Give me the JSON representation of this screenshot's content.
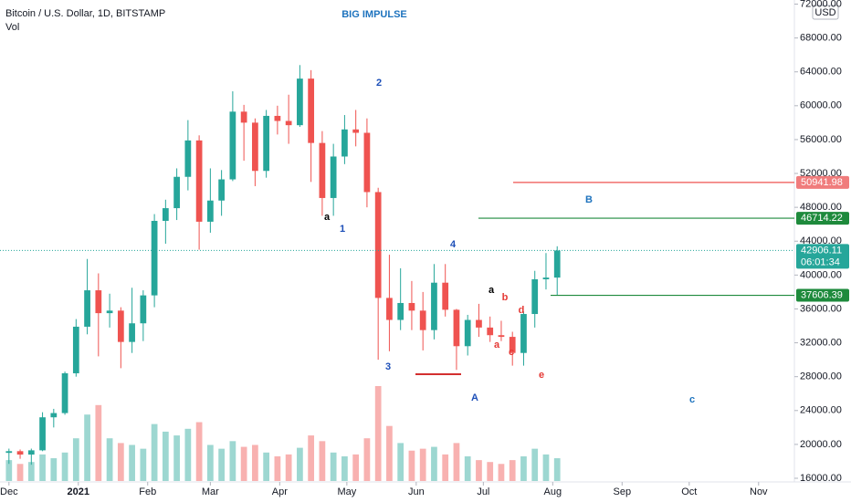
{
  "chart_data": {
    "type": "candlestick",
    "title": "BIG IMPULSE",
    "subtitle": "Bitcoin / U.S. Dollar, 1D, BITSTAMP",
    "volume_label": "Vol",
    "currency": "USD",
    "categories": [
      null,
      null,
      null,
      null,
      null,
      null,
      null,
      null,
      null,
      null,
      null,
      null,
      null,
      null,
      null,
      null,
      null,
      null,
      null,
      null,
      null,
      null,
      null,
      null,
      null,
      null,
      null,
      null,
      null,
      null,
      null,
      null,
      null,
      null,
      null,
      null,
      null,
      null,
      null,
      null,
      null,
      null,
      null,
      null,
      null,
      null,
      null,
      null,
      null,
      null
    ],
    "open": [
      19000,
      19200,
      18800,
      19300,
      23200,
      23700,
      28400,
      33900,
      38200,
      35500,
      35800,
      32100,
      34300,
      37600,
      46400,
      47900,
      51600,
      55900,
      46300,
      48800,
      51300,
      59300,
      58000,
      52300,
      58800,
      58200,
      57700,
      63200,
      55600,
      49100,
      54000,
      57200,
      56800,
      49800,
      37300,
      34700,
      36700,
      35800,
      33500,
      39100,
      35900,
      31600,
      34700,
      33800,
      32900,
      32700,
      30800,
      35400,
      39500,
      39700
    ],
    "high": [
      19500,
      19400,
      19500,
      23800,
      24200,
      28600,
      34800,
      41900,
      40200,
      37800,
      36200,
      38500,
      38200,
      47200,
      48900,
      52600,
      58300,
      56500,
      52600,
      52400,
      61700,
      60100,
      58500,
      59500,
      60000,
      61300,
      64800,
      64200,
      57000,
      55500,
      58900,
      59500,
      58500,
      50300,
      42400,
      40800,
      39300,
      38000,
      41300,
      41300,
      36000,
      35300,
      36600,
      35100,
      34600,
      33300,
      35700,
      40500,
      42600,
      43400
    ],
    "low": [
      17700,
      18300,
      17600,
      19200,
      22000,
      23500,
      28000,
      33000,
      30400,
      33800,
      29000,
      30800,
      32200,
      36200,
      43700,
      46500,
      50000,
      43000,
      45000,
      47000,
      51100,
      53500,
      50500,
      51500,
      56600,
      55500,
      57500,
      51000,
      47000,
      47000,
      53100,
      55200,
      48000,
      30000,
      31000,
      33500,
      33500,
      31100,
      32400,
      35100,
      28800,
      30500,
      32700,
      32100,
      32200,
      29300,
      29300,
      33800,
      38300,
      37600
    ],
    "close": [
      19200,
      18800,
      19300,
      23200,
      23700,
      28400,
      33900,
      38200,
      35500,
      35800,
      32100,
      34300,
      37600,
      46400,
      47900,
      51600,
      55900,
      46300,
      48800,
      51300,
      59300,
      58000,
      52300,
      58800,
      58200,
      57700,
      63200,
      55600,
      49100,
      54000,
      57200,
      56800,
      49800,
      37300,
      34700,
      36700,
      35800,
      33500,
      39100,
      35900,
      31600,
      34700,
      33800,
      32900,
      32700,
      30800,
      35400,
      39500,
      39700,
      42900
    ],
    "volume": [
      22,
      18,
      20,
      28,
      24,
      30,
      45,
      70,
      80,
      45,
      40,
      38,
      34,
      60,
      52,
      48,
      55,
      62,
      38,
      34,
      42,
      36,
      38,
      30,
      26,
      28,
      35,
      48,
      42,
      30,
      26,
      28,
      45,
      100,
      58,
      40,
      32,
      34,
      36,
      28,
      40,
      26,
      22,
      20,
      18,
      22,
      26,
      34,
      28,
      24
    ],
    "volume_lim": [
      0,
      100
    ],
    "up_color": "#26a69a",
    "down_color": "#ef5350",
    "ylim": [
      16000,
      72000
    ],
    "yticks": [
      {
        "value": 16000,
        "label": "16000.00"
      },
      {
        "value": 20000,
        "label": "20000.00"
      },
      {
        "value": 24000,
        "label": "24000.00"
      },
      {
        "value": 28000,
        "label": "28000.00"
      },
      {
        "value": 32000,
        "label": "32000.00"
      },
      {
        "value": 36000,
        "label": "36000.00"
      },
      {
        "value": 40000,
        "label": "40000.00"
      },
      {
        "value": 44000,
        "label": "44000.00"
      },
      {
        "value": 48000,
        "label": "48000.00"
      },
      {
        "value": 52000,
        "label": "52000.00"
      },
      {
        "value": 56000,
        "label": "56000.00"
      },
      {
        "value": 60000,
        "label": "60000.00"
      },
      {
        "value": 64000,
        "label": "64000.00"
      },
      {
        "value": 68000,
        "label": "68000.00"
      },
      {
        "value": 72000,
        "label": "72000.00"
      }
    ],
    "xlim": [
      -0.8,
      70.2
    ],
    "xticks": [
      {
        "value": 0,
        "label": "Dec"
      },
      {
        "value": 6.2,
        "label": "2021"
      },
      {
        "value": 12.4,
        "label": "Feb"
      },
      {
        "value": 18,
        "label": "Mar"
      },
      {
        "value": 24.2,
        "label": "Apr"
      },
      {
        "value": 30.2,
        "label": "May"
      },
      {
        "value": 36.4,
        "label": "Jun"
      },
      {
        "value": 42.4,
        "label": "Jul"
      },
      {
        "value": 48.6,
        "label": "Aug"
      },
      {
        "value": 54.8,
        "label": "Sep"
      },
      {
        "value": 60.8,
        "label": "Oct"
      },
      {
        "value": 67,
        "label": "Nov"
      }
    ],
    "grid": false,
    "levels": [
      {
        "value": 50941.98,
        "label": "50941.98",
        "color": "#f07c7c",
        "line_color": "#ef5350"
      },
      {
        "value": 46714.22,
        "label": "46714.22",
        "color": "#1e8a3c",
        "line_color": "#1e8a3c"
      },
      {
        "value": 37606.39,
        "label": "37606.39",
        "color": "#1e8a3c",
        "line_color": "#1e8a3c"
      }
    ],
    "last_price": {
      "value": 42906.11,
      "label": "42906.11",
      "countdown": "06:01:34",
      "color": "#26a69a"
    },
    "annotations": [
      {
        "text": "2",
        "color": "#1d4fb8"
      },
      {
        "text": "a",
        "color": "#000000"
      },
      {
        "text": "1",
        "color": "#1d4fb8"
      },
      {
        "text": "3",
        "color": "#1d4fb8"
      },
      {
        "text": "4",
        "color": "#1d4fb8"
      },
      {
        "text": "A",
        "color": "#1d4fb8"
      },
      {
        "text": "B",
        "color": "#1e73be"
      },
      {
        "text": "c",
        "color": "#1e73be"
      },
      {
        "text": "a",
        "color": "#000000"
      },
      {
        "text": "b",
        "color": "#e53935"
      },
      {
        "text": "d",
        "color": "#e53935"
      },
      {
        "text": "a",
        "color": "#e53935"
      },
      {
        "text": "c",
        "color": "#e53935"
      },
      {
        "text": "e",
        "color": "#e53935"
      }
    ]
  }
}
